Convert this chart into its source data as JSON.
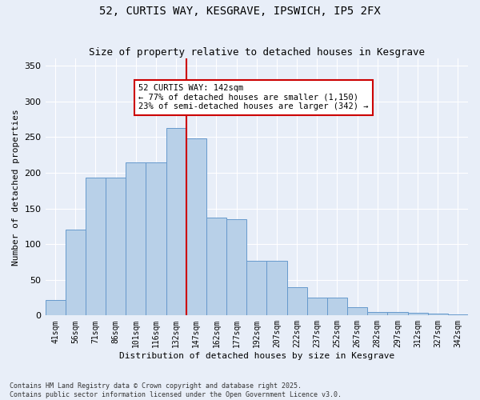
{
  "title": "52, CURTIS WAY, KESGRAVE, IPSWICH, IP5 2FX",
  "subtitle": "Size of property relative to detached houses in Kesgrave",
  "xlabel": "Distribution of detached houses by size in Kesgrave",
  "ylabel": "Number of detached properties",
  "footer_line1": "Contains HM Land Registry data © Crown copyright and database right 2025.",
  "footer_line2": "Contains public sector information licensed under the Open Government Licence v3.0.",
  "annotation_line1": "52 CURTIS WAY: 142sqm",
  "annotation_line2": "← 77% of detached houses are smaller (1,150)",
  "annotation_line3": "23% of semi-detached houses are larger (342) →",
  "bar_color": "#b8d0e8",
  "bar_edge_color": "#6699cc",
  "vline_color": "#cc0000",
  "vline_x_index": 7,
  "background_color": "#e8eef8",
  "grid_color": "#ffffff",
  "categories": [
    "41sqm",
    "56sqm",
    "71sqm",
    "86sqm",
    "101sqm",
    "116sqm",
    "132sqm",
    "147sqm",
    "162sqm",
    "177sqm",
    "192sqm",
    "207sqm",
    "222sqm",
    "237sqm",
    "252sqm",
    "267sqm",
    "282sqm",
    "297sqm",
    "312sqm",
    "327sqm",
    "342sqm"
  ],
  "values": [
    22,
    120,
    193,
    193,
    215,
    215,
    263,
    248,
    137,
    135,
    77,
    77,
    40,
    25,
    25,
    12,
    5,
    5,
    4,
    3,
    2
  ],
  "ylim": [
    0,
    360
  ],
  "yticks": [
    0,
    50,
    100,
    150,
    200,
    250,
    300,
    350
  ]
}
